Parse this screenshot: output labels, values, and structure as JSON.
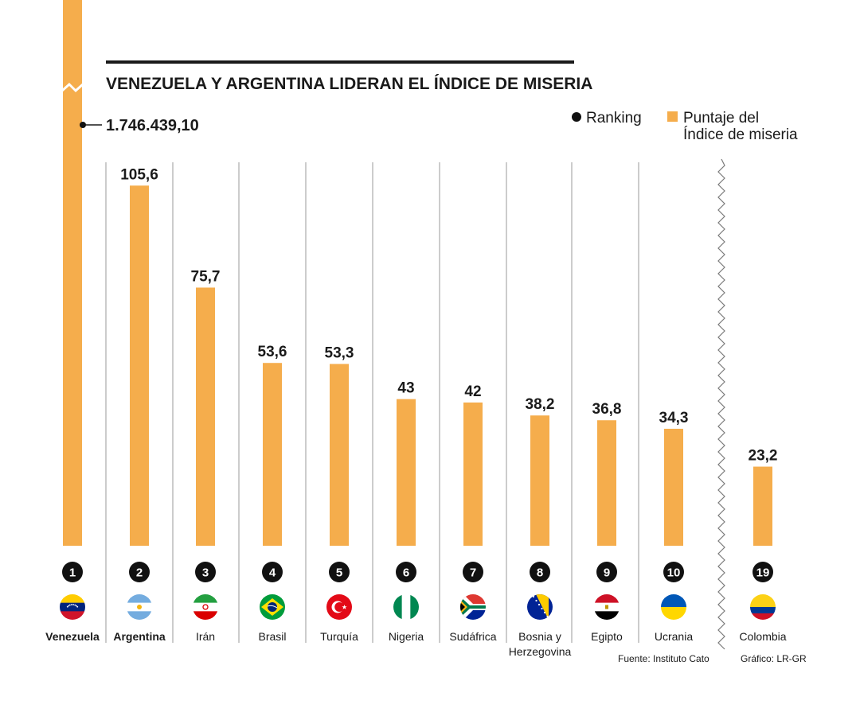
{
  "chart_data": {
    "type": "bar",
    "title": "VENEZUELA Y ARGENTINA LIDERAN EL ÍNDICE DE MISERIA",
    "legend": {
      "ranking_label": "Ranking",
      "score_label_line1": "Puntaje del",
      "score_label_line2": "Índice de miseria",
      "placement": "top-right"
    },
    "outlier_label": "1.746.439,10",
    "ylim": [
      0,
      110
    ],
    "bar_color": "#F5AD4C",
    "categories": [
      {
        "name": "Venezuela",
        "name_line2": "",
        "rank": "1",
        "value": 1746439.1,
        "value_label": "",
        "bold": true,
        "outlier": true,
        "flag": "venezuela-flag"
      },
      {
        "name": "Argentina",
        "name_line2": "",
        "rank": "2",
        "value": 105.6,
        "value_label": "105,6",
        "bold": true,
        "outlier": false,
        "flag": "argentina-flag"
      },
      {
        "name": "Irán",
        "name_line2": "",
        "rank": "3",
        "value": 75.7,
        "value_label": "75,7",
        "bold": false,
        "outlier": false,
        "flag": "iran-flag"
      },
      {
        "name": "Brasil",
        "name_line2": "",
        "rank": "4",
        "value": 53.6,
        "value_label": "53,6",
        "bold": false,
        "outlier": false,
        "flag": "brazil-flag"
      },
      {
        "name": "Turquía",
        "name_line2": "",
        "rank": "5",
        "value": 53.3,
        "value_label": "53,3",
        "bold": false,
        "outlier": false,
        "flag": "turkey-flag"
      },
      {
        "name": "Nigeria",
        "name_line2": "",
        "rank": "6",
        "value": 43,
        "value_label": "43",
        "bold": false,
        "outlier": false,
        "flag": "nigeria-flag"
      },
      {
        "name": "Sudáfrica",
        "name_line2": "",
        "rank": "7",
        "value": 42,
        "value_label": "42",
        "bold": false,
        "outlier": false,
        "flag": "south-africa-flag"
      },
      {
        "name": "Bosnia y",
        "name_line2": "Herzegovina",
        "rank": "8",
        "value": 38.2,
        "value_label": "38,2",
        "bold": false,
        "outlier": false,
        "flag": "bosnia-flag"
      },
      {
        "name": "Egipto",
        "name_line2": "",
        "rank": "9",
        "value": 36.8,
        "value_label": "36,8",
        "bold": false,
        "outlier": false,
        "flag": "egypt-flag"
      },
      {
        "name": "Ucrania",
        "name_line2": "",
        "rank": "10",
        "value": 34.3,
        "value_label": "34,3",
        "bold": false,
        "outlier": false,
        "flag": "ukraine-flag"
      },
      {
        "name": "Colombia",
        "name_line2": "",
        "rank": "19",
        "value": 23.2,
        "value_label": "23,2",
        "bold": false,
        "outlier": false,
        "flag": "colombia-flag"
      }
    ],
    "source": "Fuente: Instituto Cato",
    "credit": "Gráfico: LR-GR"
  }
}
